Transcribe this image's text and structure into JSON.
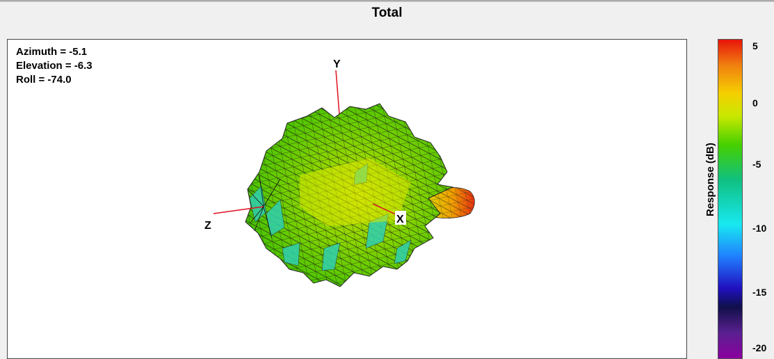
{
  "title": "Total",
  "view": {
    "azimuth": "Azimuth = -5.1",
    "elevation": "Elevation = -6.3",
    "roll": "Roll = -74.0"
  },
  "axes": {
    "x": "X",
    "y": "Y",
    "z": "Z"
  },
  "colorbar": {
    "title": "Response (dB)",
    "ticks": [
      "5",
      "0",
      "-5",
      "-10",
      "-15",
      "-20"
    ],
    "colors": {
      "max": "#e8140a",
      "mid": "#46d000",
      "min": "#8a00a0"
    }
  }
}
